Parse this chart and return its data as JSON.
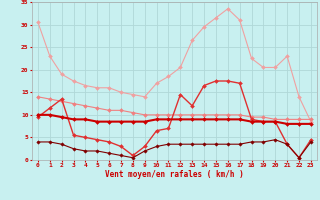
{
  "xlabel": "Vent moyen/en rafales ( km/h )",
  "background_color": "#c8f0f0",
  "grid_color": "#b0d8d8",
  "xlim": [
    -0.5,
    23.5
  ],
  "ylim": [
    0,
    35
  ],
  "yticks": [
    0,
    5,
    10,
    15,
    20,
    25,
    30,
    35
  ],
  "xticks": [
    0,
    1,
    2,
    3,
    4,
    5,
    6,
    7,
    8,
    9,
    10,
    11,
    12,
    13,
    14,
    15,
    16,
    17,
    18,
    19,
    20,
    21,
    22,
    23
  ],
  "lines": [
    {
      "x": [
        0,
        1,
        2,
        3,
        4,
        5,
        6,
        7,
        8,
        9,
        10,
        11,
        12,
        13,
        14,
        15,
        16,
        17,
        18,
        19,
        20,
        21,
        22,
        23
      ],
      "y": [
        30.5,
        23,
        19,
        17.5,
        16.5,
        16,
        16,
        15,
        14.5,
        14,
        17,
        18.5,
        20.5,
        26.5,
        29.5,
        31.5,
        33.5,
        31,
        22.5,
        20.5,
        20.5,
        23,
        14,
        8.5
      ],
      "color": "#f0a0a0",
      "linewidth": 0.8,
      "marker": "D",
      "markersize": 2.0
    },
    {
      "x": [
        0,
        1,
        2,
        3,
        4,
        5,
        6,
        7,
        8,
        9,
        10,
        11,
        12,
        13,
        14,
        15,
        16,
        17,
        18,
        19,
        20,
        21,
        22,
        23
      ],
      "y": [
        14,
        13.5,
        13,
        12.5,
        12,
        11.5,
        11,
        11,
        10.5,
        10,
        10,
        10,
        10,
        10,
        10,
        10,
        10,
        10,
        9.5,
        9.5,
        9,
        9,
        9,
        9
      ],
      "color": "#f08080",
      "linewidth": 0.8,
      "marker": "D",
      "markersize": 2.0
    },
    {
      "x": [
        0,
        1,
        2,
        3,
        4,
        5,
        6,
        7,
        8,
        9,
        10,
        11,
        12,
        13,
        14,
        15,
        16,
        17,
        18,
        19,
        20,
        21,
        22,
        23
      ],
      "y": [
        9.5,
        11.5,
        13.5,
        5.5,
        5,
        4.5,
        4,
        3,
        1,
        3,
        6.5,
        7,
        14.5,
        12,
        16.5,
        17.5,
        17.5,
        17,
        9,
        8.5,
        8.5,
        3.5,
        0.5,
        4.5
      ],
      "color": "#e03030",
      "linewidth": 1.0,
      "marker": "D",
      "markersize": 2.0
    },
    {
      "x": [
        0,
        1,
        2,
        3,
        4,
        5,
        6,
        7,
        8,
        9,
        10,
        11,
        12,
        13,
        14,
        15,
        16,
        17,
        18,
        19,
        20,
        21,
        22,
        23
      ],
      "y": [
        10,
        10,
        9.5,
        9,
        9,
        8.5,
        8.5,
        8.5,
        8.5,
        8.5,
        9,
        9,
        9,
        9,
        9,
        9,
        9,
        9,
        8.5,
        8.5,
        8.5,
        8,
        8,
        8
      ],
      "color": "#cc0000",
      "linewidth": 1.5,
      "marker": "D",
      "markersize": 2.0
    },
    {
      "x": [
        0,
        1,
        2,
        3,
        4,
        5,
        6,
        7,
        8,
        9,
        10,
        11,
        12,
        13,
        14,
        15,
        16,
        17,
        18,
        19,
        20,
        21,
        22,
        23
      ],
      "y": [
        4,
        4,
        3.5,
        2.5,
        2,
        2,
        1.5,
        1,
        0.5,
        2,
        3,
        3.5,
        3.5,
        3.5,
        3.5,
        3.5,
        3.5,
        3.5,
        4,
        4,
        4.5,
        3.5,
        0.5,
        4
      ],
      "color": "#800000",
      "linewidth": 0.8,
      "marker": "D",
      "markersize": 1.8
    }
  ]
}
